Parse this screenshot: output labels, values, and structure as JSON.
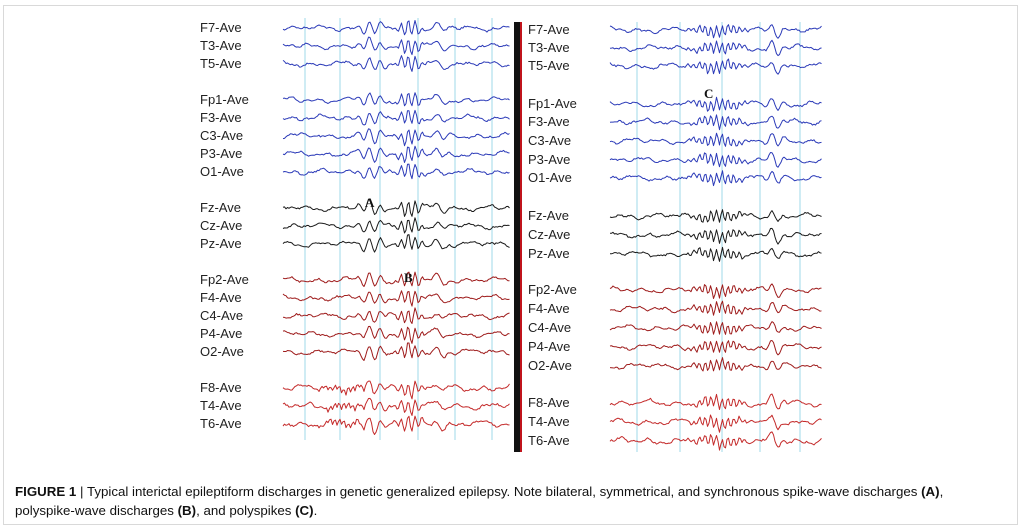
{
  "figure": {
    "left_channels": [
      [
        "F7-Ave",
        "T3-Ave",
        "T5-Ave"
      ],
      [
        "Fp1-Ave",
        "F3-Ave",
        "C3-Ave",
        "P3-Ave",
        "O1-Ave"
      ],
      [
        "Fz-Ave",
        "Cz-Ave",
        "Pz-Ave"
      ],
      [
        "Fp2-Ave",
        "F4-Ave",
        "C4-Ave",
        "P4-Ave",
        "O2-Ave"
      ],
      [
        "F8-Ave",
        "T4-Ave",
        "T6-Ave"
      ]
    ],
    "right_channels": [
      [
        "F7-Ave",
        "T3-Ave",
        "T5-Ave"
      ],
      [
        "Fp1-Ave",
        "F3-Ave",
        "C3-Ave",
        "P3-Ave",
        "O1-Ave"
      ],
      [
        "Fz-Ave",
        "Cz-Ave",
        "Pz-Ave"
      ],
      [
        "Fp2-Ave",
        "F4-Ave",
        "C4-Ave",
        "P4-Ave",
        "O2-Ave"
      ],
      [
        "F8-Ave",
        "T4-Ave",
        "T6-Ave"
      ]
    ],
    "markers": {
      "a": "A",
      "b": "B",
      "c": "C"
    },
    "group_colors": [
      "#2b3ab8",
      "#2b3ab8",
      "#1a1a1a",
      "#9e1b1b",
      "#c42a2a"
    ],
    "gridline_color": "#9fd9ea",
    "divider_color": "#111111",
    "divider_accent": "#c0141c"
  },
  "caption": {
    "label": "FIGURE 1",
    "separator": " | ",
    "text1": "Typical interictal epileptiform discharges in genetic generalized epilepsy. Note bilateral, symmetrical, and synchronous spike-wave discharges ",
    "ref_a": "(A)",
    "text2": ", polyspike-wave discharges ",
    "ref_b": "(B)",
    "text3": ", and polyspikes ",
    "ref_c": "(C)",
    "text4": "."
  }
}
